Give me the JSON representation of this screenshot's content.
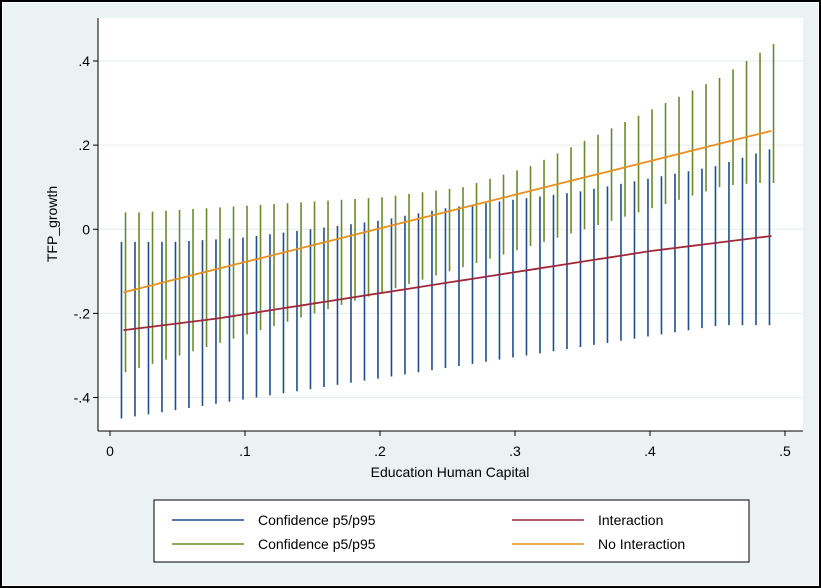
{
  "chart_data": {
    "type": "line",
    "title": "",
    "xlabel": "Education Human Capital",
    "ylabel": "TFP_growth",
    "xlim": [
      0,
      0.5
    ],
    "ylim": [
      -0.45,
      0.45
    ],
    "x_ticks": [
      0,
      0.1,
      0.2,
      0.3,
      0.4,
      0.5
    ],
    "x_tick_labels": [
      "0",
      ".1",
      ".2",
      ".3",
      ".4",
      ".5"
    ],
    "y_ticks": [
      -0.4,
      -0.2,
      0,
      0.2,
      0.4
    ],
    "y_tick_labels": [
      "-.4",
      "-.2",
      "0",
      ".2",
      ".4"
    ],
    "grid": "horizontal",
    "legend_position": "bottom",
    "x": [
      0.01,
      0.02,
      0.03,
      0.04,
      0.05,
      0.06,
      0.07,
      0.08,
      0.09,
      0.1,
      0.11,
      0.12,
      0.13,
      0.14,
      0.15,
      0.16,
      0.17,
      0.18,
      0.19,
      0.2,
      0.21,
      0.22,
      0.23,
      0.24,
      0.25,
      0.26,
      0.27,
      0.28,
      0.29,
      0.3,
      0.31,
      0.32,
      0.33,
      0.34,
      0.35,
      0.36,
      0.37,
      0.38,
      0.39,
      0.4,
      0.41,
      0.42,
      0.43,
      0.44,
      0.45,
      0.46,
      0.47,
      0.48,
      0.49
    ],
    "series": [
      {
        "name": "Confidence p5/p95",
        "kind": "range",
        "color": "#1f4e8c",
        "offset": -0.0015,
        "low": [
          -0.45,
          -0.445,
          -0.44,
          -0.435,
          -0.43,
          -0.425,
          -0.42,
          -0.415,
          -0.41,
          -0.405,
          -0.4,
          -0.395,
          -0.39,
          -0.385,
          -0.38,
          -0.375,
          -0.37,
          -0.365,
          -0.36,
          -0.355,
          -0.35,
          -0.345,
          -0.34,
          -0.335,
          -0.33,
          -0.325,
          -0.32,
          -0.315,
          -0.31,
          -0.305,
          -0.3,
          -0.295,
          -0.29,
          -0.285,
          -0.28,
          -0.275,
          -0.27,
          -0.265,
          -0.26,
          -0.255,
          -0.25,
          -0.245,
          -0.24,
          -0.235,
          -0.23,
          -0.228,
          -0.228,
          -0.228,
          -0.228
        ],
        "high": [
          -0.03,
          -0.03,
          -0.03,
          -0.03,
          -0.03,
          -0.028,
          -0.026,
          -0.024,
          -0.022,
          -0.02,
          -0.016,
          -0.012,
          -0.008,
          -0.004,
          0.0,
          0.004,
          0.008,
          0.012,
          0.016,
          0.02,
          0.026,
          0.032,
          0.038,
          0.044,
          0.05,
          0.054,
          0.058,
          0.062,
          0.066,
          0.07,
          0.074,
          0.078,
          0.082,
          0.086,
          0.09,
          0.096,
          0.102,
          0.108,
          0.114,
          0.12,
          0.126,
          0.132,
          0.138,
          0.144,
          0.15,
          0.16,
          0.17,
          0.18,
          0.19
        ]
      },
      {
        "name": "Interaction",
        "kind": "line",
        "color": "#a0283a",
        "values": [
          -0.24,
          -0.236,
          -0.232,
          -0.228,
          -0.224,
          -0.22,
          -0.216,
          -0.212,
          -0.207,
          -0.202,
          -0.197,
          -0.192,
          -0.187,
          -0.182,
          -0.177,
          -0.172,
          -0.167,
          -0.162,
          -0.157,
          -0.152,
          -0.147,
          -0.142,
          -0.137,
          -0.132,
          -0.127,
          -0.122,
          -0.117,
          -0.112,
          -0.107,
          -0.102,
          -0.097,
          -0.092,
          -0.087,
          -0.082,
          -0.077,
          -0.072,
          -0.067,
          -0.062,
          -0.057,
          -0.052,
          -0.048,
          -0.044,
          -0.04,
          -0.036,
          -0.032,
          -0.028,
          -0.024,
          -0.02,
          -0.016
        ]
      },
      {
        "name": "Confidence p5/p95",
        "kind": "range",
        "color": "#6b8a2c",
        "offset": 0.0015,
        "low": [
          -0.34,
          -0.33,
          -0.32,
          -0.31,
          -0.3,
          -0.29,
          -0.28,
          -0.27,
          -0.26,
          -0.25,
          -0.24,
          -0.23,
          -0.22,
          -0.21,
          -0.2,
          -0.19,
          -0.18,
          -0.17,
          -0.16,
          -0.15,
          -0.14,
          -0.13,
          -0.12,
          -0.11,
          -0.1,
          -0.09,
          -0.08,
          -0.07,
          -0.06,
          -0.05,
          -0.04,
          -0.03,
          -0.02,
          -0.01,
          0.0,
          0.01,
          0.02,
          0.03,
          0.04,
          0.05,
          0.06,
          0.07,
          0.08,
          0.09,
          0.1,
          0.105,
          0.108,
          0.11,
          0.11
        ],
        "high": [
          0.04,
          0.04,
          0.042,
          0.044,
          0.046,
          0.048,
          0.05,
          0.052,
          0.054,
          0.056,
          0.058,
          0.06,
          0.062,
          0.064,
          0.066,
          0.068,
          0.07,
          0.072,
          0.074,
          0.076,
          0.08,
          0.084,
          0.088,
          0.092,
          0.096,
          0.1,
          0.11,
          0.12,
          0.13,
          0.14,
          0.15,
          0.165,
          0.18,
          0.195,
          0.21,
          0.225,
          0.24,
          0.255,
          0.27,
          0.285,
          0.3,
          0.315,
          0.33,
          0.345,
          0.36,
          0.38,
          0.4,
          0.42,
          0.44
        ]
      },
      {
        "name": "No Interaction",
        "kind": "line",
        "color": "#e8901e",
        "values": [
          -0.15,
          -0.142,
          -0.134,
          -0.126,
          -0.118,
          -0.11,
          -0.102,
          -0.094,
          -0.086,
          -0.078,
          -0.07,
          -0.062,
          -0.054,
          -0.046,
          -0.038,
          -0.03,
          -0.022,
          -0.014,
          -0.006,
          0.002,
          0.01,
          0.018,
          0.026,
          0.034,
          0.042,
          0.05,
          0.058,
          0.066,
          0.074,
          0.082,
          0.09,
          0.098,
          0.106,
          0.114,
          0.122,
          0.13,
          0.138,
          0.146,
          0.154,
          0.162,
          0.17,
          0.178,
          0.186,
          0.194,
          0.202,
          0.21,
          0.218,
          0.226,
          0.234
        ]
      }
    ],
    "legend": [
      {
        "label": "Confidence p5/p95",
        "color": "#1f4e8c"
      },
      {
        "label": "Interaction",
        "color": "#a0283a"
      },
      {
        "label": "Confidence p5/p95",
        "color": "#6b8a2c"
      },
      {
        "label": "No Interaction",
        "color": "#e8901e"
      }
    ]
  }
}
